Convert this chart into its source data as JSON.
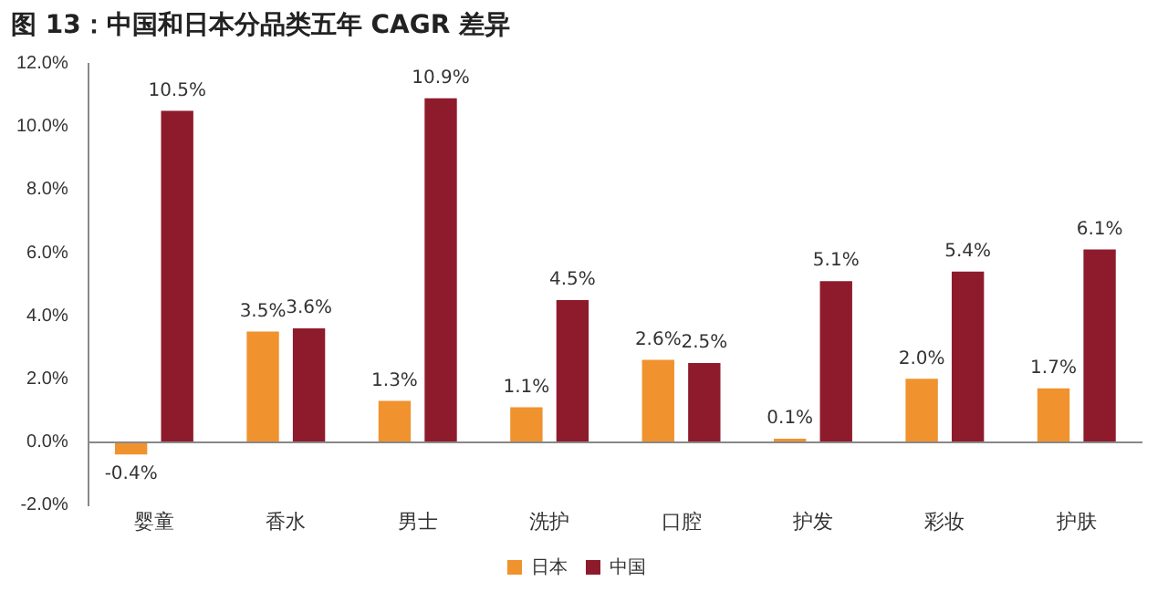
{
  "chart_data": {
    "type": "bar",
    "title": "图 13：中国和日本分品类五年 CAGR 差异",
    "categories": [
      "婴童",
      "香水",
      "男士",
      "洗护",
      "口腔",
      "护发",
      "彩妆",
      "护肤"
    ],
    "series": [
      {
        "name": "日本",
        "color": "#f0922e",
        "values": [
          -0.4,
          3.5,
          1.3,
          1.1,
          2.6,
          0.1,
          2.0,
          1.7
        ],
        "value_labels": [
          "-0.4%",
          "3.5%",
          "1.3%",
          "1.1%",
          "2.6%",
          "0.1%",
          "2.0%",
          "1.7%"
        ]
      },
      {
        "name": "中国",
        "color": "#8e1b2c",
        "values": [
          10.5,
          3.6,
          10.9,
          4.5,
          2.5,
          5.1,
          5.4,
          6.1
        ],
        "value_labels": [
          "10.5%",
          "3.6%",
          "10.9%",
          "4.5%",
          "2.5%",
          "5.1%",
          "5.4%",
          "6.1%"
        ]
      }
    ],
    "ylim": [
      -2,
      12
    ],
    "yticks": [
      {
        "value": -2,
        "label": "-2.0%"
      },
      {
        "value": 0,
        "label": "0.0%"
      },
      {
        "value": 2,
        "label": "2.0%"
      },
      {
        "value": 4,
        "label": "4.0%"
      },
      {
        "value": 6,
        "label": "6.0%"
      },
      {
        "value": 8,
        "label": "8.0%"
      },
      {
        "value": 10,
        "label": "10.0%"
      },
      {
        "value": 12,
        "label": "12.0%"
      }
    ],
    "ref_lines": [
      {
        "axis": "y",
        "value": 0,
        "color": "#888888",
        "line_style": "solid"
      }
    ],
    "grid": false,
    "legend": "bottom"
  }
}
